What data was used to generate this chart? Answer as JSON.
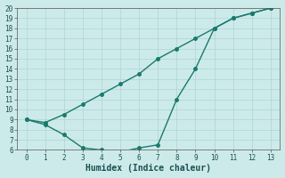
{
  "line1_x": [
    0,
    1,
    2,
    3,
    4,
    5,
    6,
    7,
    8,
    9,
    10,
    11,
    12,
    13
  ],
  "line1_y": [
    9.0,
    8.7,
    9.5,
    10.5,
    11.5,
    12.5,
    13.5,
    15.0,
    16.0,
    17.0,
    18.0,
    19.0,
    19.5,
    20.0
  ],
  "line2_x": [
    0,
    1,
    2,
    3,
    4,
    5,
    6,
    7,
    8,
    9,
    10,
    11,
    12,
    13
  ],
  "line2_y": [
    9.0,
    8.5,
    7.5,
    6.2,
    6.0,
    5.8,
    6.2,
    6.5,
    11.0,
    14.0,
    18.0,
    19.0,
    19.5,
    20.0
  ],
  "line_color": "#1a7a6e",
  "bg_color": "#cdeaea",
  "grid_color": "#aed4d4",
  "xlabel": "Humidex (Indice chaleur)",
  "xlim_min": -0.5,
  "xlim_max": 13.5,
  "ylim_min": 6,
  "ylim_max": 20,
  "yticks": [
    6,
    7,
    8,
    9,
    10,
    11,
    12,
    13,
    14,
    15,
    16,
    17,
    18,
    19,
    20
  ],
  "xticks": [
    0,
    1,
    2,
    3,
    4,
    5,
    6,
    7,
    8,
    9,
    10,
    11,
    12,
    13
  ],
  "marker_size": 2.5,
  "line_width": 1.0,
  "xlabel_fontsize": 7,
  "tick_fontsize": 5.5
}
